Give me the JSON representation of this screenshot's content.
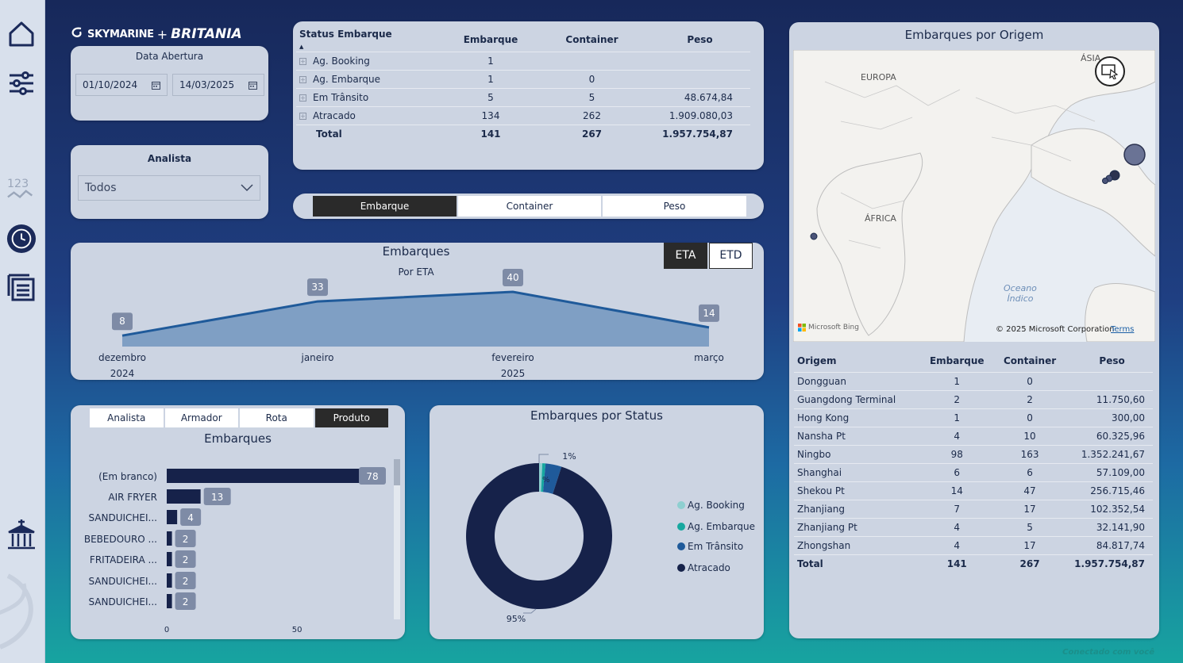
{
  "logo": {
    "part1": "SKYMARINE",
    "plus": "+",
    "part2": "BRITANIA",
    "tagline": "Conectado com você"
  },
  "date_filter": {
    "title": "Data Abertura",
    "start": "01/10/2024",
    "end": "14/03/2025"
  },
  "analyst_filter": {
    "title": "Analista",
    "value": "Todos"
  },
  "status_table": {
    "headers": [
      "Status Embarque",
      "Embarque",
      "Container",
      "Peso"
    ],
    "rows": [
      {
        "status": "Ag. Booking",
        "embarque": "1",
        "container": "",
        "peso": ""
      },
      {
        "status": "Ag. Embarque",
        "embarque": "1",
        "container": "0",
        "peso": ""
      },
      {
        "status": "Em Trânsito",
        "embarque": "5",
        "container": "5",
        "peso": "48.674,84"
      },
      {
        "status": "Atracado",
        "embarque": "134",
        "container": "262",
        "peso": "1.909.080,03"
      }
    ],
    "total": {
      "label": "Total",
      "embarque": "141",
      "container": "267",
      "peso": "1.957.754,87"
    }
  },
  "metric_selector": {
    "options": [
      "Embarque",
      "Container",
      "Peso"
    ],
    "active": "Embarque"
  },
  "area_chart_card": {
    "title": "Embarques",
    "subtitle": "Por ETA",
    "toggle": [
      "ETA",
      "ETD"
    ],
    "active_toggle": "ETA"
  },
  "chart_data": [
    {
      "type": "area",
      "title": "Embarques",
      "subtitle": "Por ETA",
      "categories": [
        "dezembro",
        "janeiro",
        "fevereiro",
        "março"
      ],
      "years": [
        {
          "label": "2024",
          "index": 0
        },
        {
          "label": "2025",
          "index": 2
        }
      ],
      "values": [
        8,
        33,
        40,
        14
      ],
      "colors": {
        "line": "#1f5a9a",
        "fill": "#7f9fc4"
      }
    },
    {
      "type": "bar",
      "title": "Embarques",
      "categories": [
        "(Em branco)",
        "AIR FRYER",
        "SANDUICHEI...",
        "BEBEDOURO ...",
        "FRITADEIRA ...",
        "SANDUICHEI...",
        "SANDUICHEI..."
      ],
      "values": [
        78,
        13,
        4,
        2,
        2,
        2,
        2
      ],
      "x_ticks": [
        0,
        50
      ],
      "xlim": [
        0,
        78
      ],
      "color": "#16224a"
    },
    {
      "type": "pie",
      "title": "Embarques por Status",
      "labels": [
        "Ag. Booking",
        "Ag. Embarque",
        "Em Trânsito",
        "Atracado"
      ],
      "values": [
        1,
        1,
        5,
        134
      ],
      "label_texts": [
        "1%",
        "%",
        "95%"
      ],
      "colors": [
        "#8ecfd0",
        "#17a8a0",
        "#1f5a9a",
        "#16224a"
      ],
      "legend": "right"
    }
  ],
  "bar_card": {
    "tabs": [
      "Analista",
      "Armador",
      "Rota",
      "Produto"
    ],
    "active": "Produto"
  },
  "map_card": {
    "title": "Embarques por Origem",
    "labels": {
      "europa": "EUROPA",
      "asia": "ÁSIA",
      "africa": "ÁFRICA",
      "ocean": "Oceano",
      "ocean2": "Índico"
    },
    "attribution": "© 2025 Microsoft Corporation",
    "terms": "Terms",
    "bing": "Microsoft Bing"
  },
  "origin_table": {
    "headers": [
      "Origem",
      "Embarque",
      "Container",
      "Peso"
    ],
    "rows": [
      [
        "Dongguan",
        "1",
        "0",
        ""
      ],
      [
        "Guangdong Terminal",
        "2",
        "2",
        "11.750,60"
      ],
      [
        "Hong Kong",
        "1",
        "0",
        "300,00"
      ],
      [
        "Nansha Pt",
        "4",
        "10",
        "60.325,96"
      ],
      [
        "Ningbo",
        "98",
        "163",
        "1.352.241,67"
      ],
      [
        "Shanghai",
        "6",
        "6",
        "57.109,00"
      ],
      [
        "Shekou Pt",
        "14",
        "47",
        "256.715,46"
      ],
      [
        "Zhanjiang",
        "7",
        "17",
        "102.352,54"
      ],
      [
        "Zhanjiang Pt",
        "4",
        "5",
        "32.141,90"
      ],
      [
        "Zhongshan",
        "4",
        "17",
        "84.817,74"
      ]
    ],
    "total": [
      "Total",
      "141",
      "267",
      "1.957.754,87"
    ]
  },
  "footer": {
    "brand": "Conectado com você"
  },
  "sidebar": {
    "icons": [
      "home-icon",
      "filter-sliders-icon",
      "number-123-icon",
      "clock-icon",
      "report-list-icon",
      "port-building-icon"
    ]
  }
}
